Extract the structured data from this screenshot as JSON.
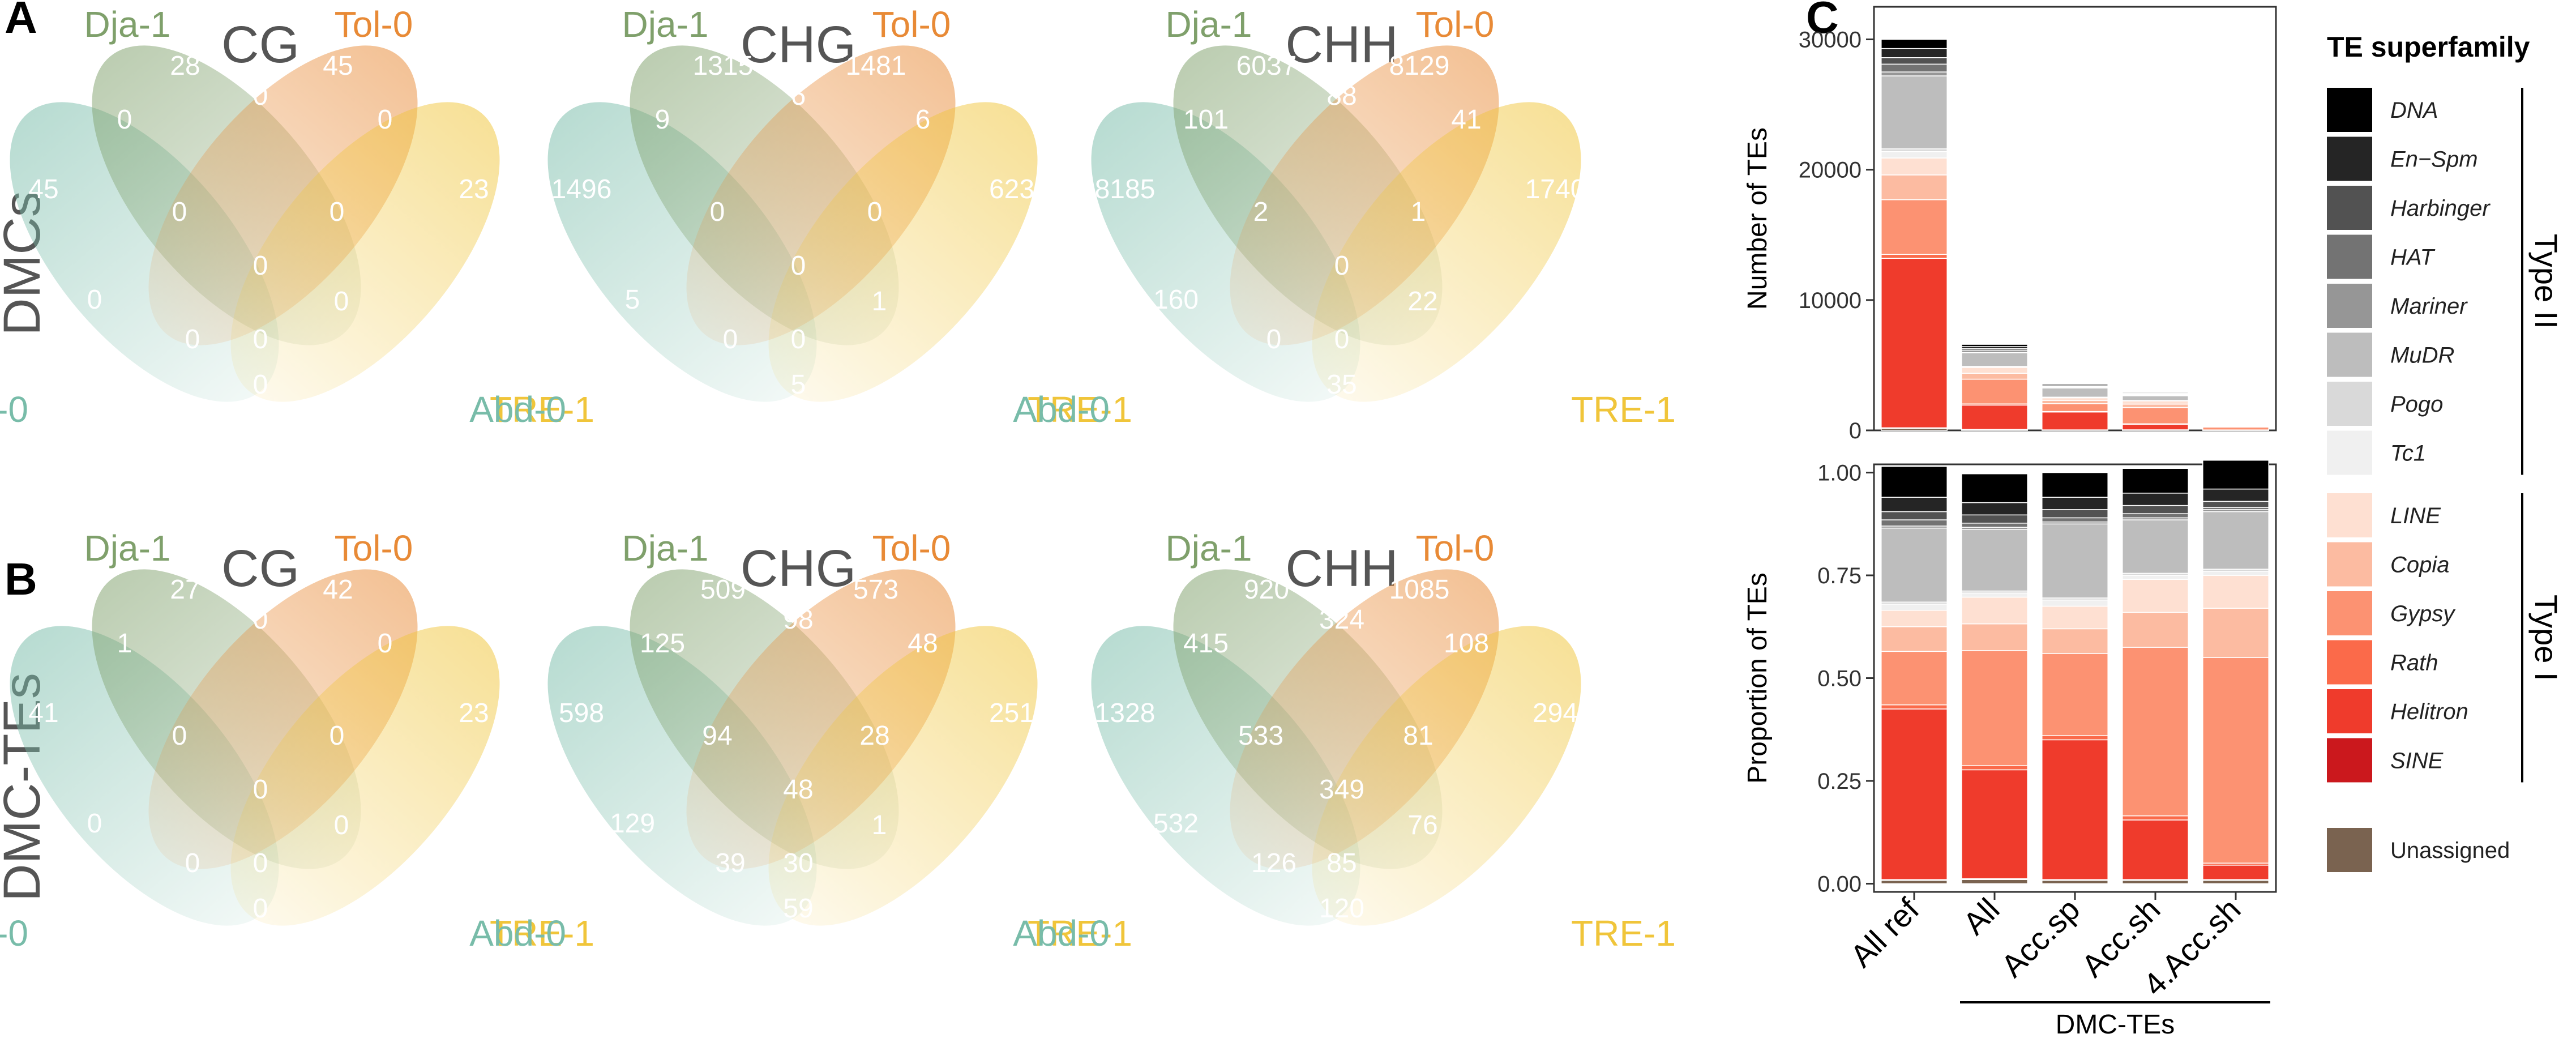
{
  "panels": {
    "a_letter": "A",
    "b_letter": "B",
    "c_letter": "C"
  },
  "venn": {
    "set_names": [
      "Abd-0",
      "Dja-1",
      "Tol-0",
      "TRE-1"
    ],
    "set_colors": [
      "#78bca9",
      "#7fa06b",
      "#e88a36",
      "#f0c53a"
    ],
    "rows": [
      {
        "label": "DMCs",
        "panels": [
          {
            "title": "CG",
            "counts": {
              "A": "45",
              "D": "28",
              "T": "45",
              "R": "23",
              "AD": "0",
              "DT": "0",
              "TR": "0",
              "AR": "0",
              "AT": "0",
              "DR": "0",
              "ADT": "0",
              "DTR": "0",
              "ADR": "0",
              "ATR": "0",
              "ADTR": "0"
            }
          },
          {
            "title": "CHG",
            "counts": {
              "A": "1496",
              "D": "1315",
              "T": "1481",
              "R": "623",
              "AD": "9",
              "DT": "6",
              "TR": "6",
              "AR": "5",
              "AT": "0",
              "DR": "0",
              "ADT": "0",
              "DTR": "1",
              "ADR": "0",
              "ATR": "0",
              "ADTR": "5"
            }
          },
          {
            "title": "CHH",
            "counts": {
              "A": "8185",
              "D": "6037",
              "T": "8129",
              "R": "1740",
              "AD": "101",
              "DT": "88",
              "TR": "41",
              "AR": "160",
              "AT": "2",
              "DR": "1",
              "ADT": "0",
              "DTR": "22",
              "ADR": "0",
              "ATR": "0",
              "ADTR": "35"
            }
          }
        ]
      },
      {
        "label": "DMC-TEs",
        "panels": [
          {
            "title": "CG",
            "counts": {
              "A": "41",
              "D": "27",
              "T": "42",
              "R": "23",
              "AD": "1",
              "DT": "0",
              "TR": "0",
              "AR": "0",
              "AT": "0",
              "DR": "0",
              "ADT": "0",
              "DTR": "0",
              "ADR": "0",
              "ATR": "0",
              "ADTR": "0"
            }
          },
          {
            "title": "CHG",
            "counts": {
              "A": "598",
              "D": "509",
              "T": "573",
              "R": "251",
              "AD": "125",
              "DT": "98",
              "TR": "48",
              "AR": "129",
              "AT": "94",
              "DR": "28",
              "ADT": "48",
              "DTR": "1",
              "ADR": "39",
              "ATR": "30",
              "ADTR": "59"
            }
          },
          {
            "title": "CHH",
            "counts": {
              "A": "1328",
              "D": "920",
              "T": "1085",
              "R": "294",
              "AD": "415",
              "DT": "324",
              "TR": "108",
              "AR": "532",
              "AT": "533",
              "DR": "81",
              "ADT": "349",
              "DTR": "76",
              "ADR": "126",
              "ATR": "85",
              "ADTR": "120"
            }
          }
        ]
      }
    ]
  },
  "chart_data": {
    "type": "bar",
    "stacked": true,
    "categories": [
      "All ref",
      "All",
      "Acc.sp",
      "Acc.sh",
      "4.Acc.sh"
    ],
    "group_bracket": {
      "label": "DMC-TEs",
      "categories": [
        "All",
        "Acc.sp",
        "Acc.sh",
        "4.Acc.sh"
      ]
    },
    "legend_title": "TE superfamily",
    "legend_groups": [
      {
        "label": "Type II",
        "members": [
          "DNA",
          "En−Spm",
          "Harbinger",
          "HAT",
          "Mariner",
          "MuDR",
          "Pogo",
          "Tc1"
        ]
      },
      {
        "label": "Type I",
        "members": [
          "LINE",
          "Copia",
          "Gypsy",
          "Rath",
          "Helitron",
          "SINE"
        ]
      }
    ],
    "series": [
      {
        "name": "DNA",
        "color": "#000000",
        "values": [
          700,
          170,
          90,
          70,
          14
        ],
        "proportions": [
          0.075,
          0.07,
          0.06,
          0.06,
          0.07
        ]
      },
      {
        "name": "En−Spm",
        "color": "#252525",
        "values": [
          700,
          160,
          90,
          70,
          13
        ],
        "proportions": [
          0.035,
          0.03,
          0.03,
          0.03,
          0.03
        ]
      },
      {
        "name": "Harbinger",
        "color": "#525252",
        "values": [
          500,
          120,
          60,
          55,
          10
        ],
        "proportions": [
          0.02,
          0.02,
          0.02,
          0.02,
          0.015
        ]
      },
      {
        "name": "HAT",
        "color": "#737373",
        "values": [
          600,
          140,
          70,
          60,
          10
        ],
        "proportions": [
          0.015,
          0.01,
          0.01,
          0.01,
          0.005
        ]
      },
      {
        "name": "Mariner",
        "color": "#969696",
        "values": [
          300,
          50,
          30,
          20,
          5
        ],
        "proportions": [
          0.005,
          0.005,
          0.005,
          0.005,
          0.005
        ]
      },
      {
        "name": "MuDR",
        "color": "#bdbdbd",
        "values": [
          5600,
          1050,
          700,
          360,
          60
        ],
        "proportions": [
          0.18,
          0.15,
          0.18,
          0.13,
          0.14
        ]
      },
      {
        "name": "Pogo",
        "color": "#d9d9d9",
        "values": [
          200,
          40,
          20,
          10,
          2
        ],
        "proportions": [
          0.005,
          0.005,
          0.005,
          0.005,
          0.005
        ]
      },
      {
        "name": "Tc1",
        "color": "#f0f0f0",
        "values": [
          500,
          40,
          30,
          20,
          3
        ],
        "proportions": [
          0.015,
          0.01,
          0.015,
          0.01,
          0.01
        ]
      },
      {
        "name": "LINE",
        "color": "#fee0d2",
        "values": [
          1300,
          450,
          200,
          250,
          50
        ],
        "proportions": [
          0.04,
          0.065,
          0.055,
          0.08,
          0.08
        ]
      },
      {
        "name": "Copia",
        "color": "#fcbba1",
        "values": [
          1900,
          450,
          250,
          260,
          42
        ],
        "proportions": [
          0.06,
          0.065,
          0.06,
          0.085,
          0.12
        ]
      },
      {
        "name": "Gypsy",
        "color": "#fc9272",
        "values": [
          4200,
          1900,
          600,
          1250,
          216
        ],
        "proportions": [
          0.13,
          0.28,
          0.2,
          0.41,
          0.5
        ]
      },
      {
        "name": "Rath",
        "color": "#fb6a4a",
        "values": [
          300,
          90,
          40,
          40,
          5
        ],
        "proportions": [
          0.01,
          0.01,
          0.01,
          0.01,
          0.005
        ]
      },
      {
        "name": "Helitron",
        "color": "#ef3b2c",
        "values": [
          13000,
          1870,
          1370,
          420,
          25
        ],
        "proportions": [
          0.415,
          0.265,
          0.34,
          0.145,
          0.035
        ]
      },
      {
        "name": "SINE",
        "color": "#cb181d",
        "values": [
          60,
          20,
          10,
          10,
          2
        ],
        "proportions": [
          0.002,
          0.002,
          0.002,
          0.002,
          0.002
        ]
      },
      {
        "name": "Unassigned",
        "color": "#7a6350",
        "values": [
          140,
          50,
          30,
          35,
          3
        ],
        "proportions": [
          0.008,
          0.01,
          0.008,
          0.008,
          0.008
        ]
      }
    ],
    "top_panel": {
      "ylabel": "Number of TEs",
      "ylim": [
        0,
        32500
      ],
      "yticks": [
        0,
        10000,
        20000,
        30000
      ]
    },
    "bottom_panel": {
      "ylabel": "Proportion of TEs",
      "ylim": [
        -0.02,
        1.02
      ],
      "yticks": [
        0.0,
        0.25,
        0.5,
        0.75,
        1.0
      ],
      "ytick_labels": [
        "0.00",
        "0.25",
        "0.50",
        "0.75",
        "1.00"
      ]
    }
  }
}
